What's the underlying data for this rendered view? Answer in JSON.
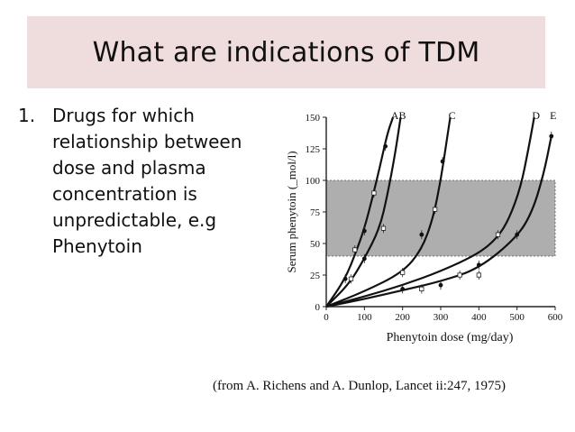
{
  "slide": {
    "title": "What are indications of TDM",
    "list_number": "1.",
    "list_lines": [
      "Drugs for which",
      "relationship between",
      "dose and plasma",
      "concentration  is",
      "unpredictable, e.g",
      "Phenytoin"
    ],
    "citation": "(from A. Richens and A. Dunlop, Lancet ii:247, 1975)"
  },
  "chart_data": {
    "type": "line",
    "xlabel": "Phenytoin dose (mg/day)",
    "ylabel": "Serum phenytoin (_mol/l)",
    "xlim": [
      0,
      600
    ],
    "ylim": [
      0,
      150
    ],
    "xticks": [
      0,
      100,
      200,
      300,
      400,
      500,
      600
    ],
    "yticks": [
      0,
      25,
      50,
      75,
      100,
      125,
      150
    ],
    "therapeutic_band": [
      40,
      100
    ],
    "grid": false,
    "series": [
      {
        "name": "A",
        "x": [
          0,
          50,
          80,
          100,
          120,
          140,
          160,
          175
        ],
        "y": [
          0,
          22,
          45,
          62,
          85,
          110,
          137,
          150
        ]
      },
      {
        "name": "B",
        "x": [
          0,
          60,
          100,
          140,
          160,
          180,
          195
        ],
        "y": [
          0,
          18,
          38,
          62,
          88,
          120,
          150
        ]
      },
      {
        "name": "C",
        "x": [
          0,
          100,
          200,
          250,
          280,
          300,
          315,
          325
        ],
        "y": [
          0,
          12,
          27,
          45,
          70,
          100,
          130,
          150
        ]
      },
      {
        "name": "D",
        "x": [
          0,
          100,
          200,
          300,
          400,
          450,
          480,
          510,
          530,
          545
        ],
        "y": [
          0,
          8,
          17,
          28,
          42,
          55,
          70,
          95,
          125,
          150
        ]
      },
      {
        "name": "E",
        "x": [
          0,
          100,
          200,
          300,
          400,
          500,
          540,
          570,
          590
        ],
        "y": [
          0,
          6,
          13,
          20,
          30,
          55,
          75,
          105,
          135
        ]
      }
    ],
    "points": [
      {
        "x": 50,
        "y": 22
      },
      {
        "x": 75,
        "y": 45
      },
      {
        "x": 100,
        "y": 60
      },
      {
        "x": 125,
        "y": 90
      },
      {
        "x": 155,
        "y": 127
      },
      {
        "x": 65,
        "y": 22
      },
      {
        "x": 100,
        "y": 38
      },
      {
        "x": 150,
        "y": 62
      },
      {
        "x": 200,
        "y": 14
      },
      {
        "x": 250,
        "y": 14
      },
      {
        "x": 300,
        "y": 17
      },
      {
        "x": 350,
        "y": 25
      },
      {
        "x": 400,
        "y": 33
      },
      {
        "x": 200,
        "y": 27
      },
      {
        "x": 250,
        "y": 57
      },
      {
        "x": 285,
        "y": 77
      },
      {
        "x": 305,
        "y": 115
      },
      {
        "x": 450,
        "y": 57
      },
      {
        "x": 500,
        "y": 57
      },
      {
        "x": 400,
        "y": 25
      },
      {
        "x": 590,
        "y": 135
      }
    ]
  }
}
